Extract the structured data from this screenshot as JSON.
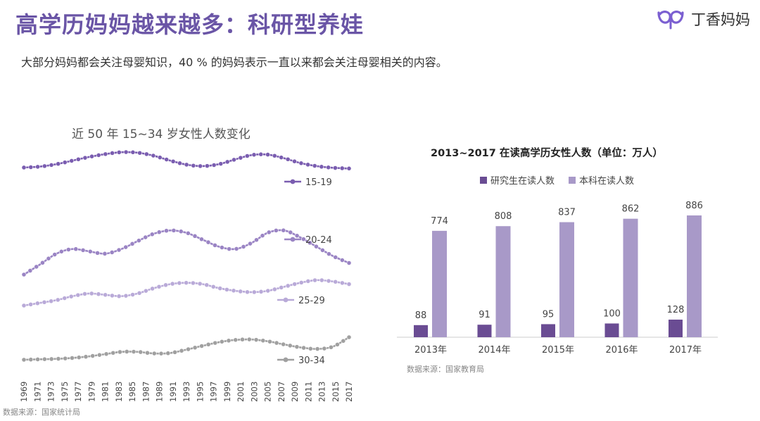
{
  "header": {
    "title": "高学历妈妈越来越多：科研型养娃",
    "subtitle": "大部分妈妈都会关注母婴知识，40 % 的妈妈表示一直以来都会关注母婴相关的内容。",
    "brand_name": "丁香妈妈",
    "brand_logo_icon": "brand-logo-icon"
  },
  "colors": {
    "title": "#6a55a6",
    "grad": "#6a4c93",
    "undergrad": "#a899c8",
    "s1519": "#7a5db0",
    "s2024": "#9a84c4",
    "s2529": "#b9aad8",
    "s3034": "#a0a0a0"
  },
  "left_chart_title": "近 50 年 15~34 岁女性人数变化",
  "left_source": "数据来源：国家统计局",
  "right_chart_title": "2013~2017 在读高学历女性人数（单位：万人）",
  "right_source": "数据来源：国家教育局",
  "legend": {
    "grad": "研究生在读人数",
    "undergrad": "本科在读人数"
  },
  "chart_data": [
    {
      "type": "line",
      "title": "近 50 年 15~34 岁女性人数变化",
      "xlabel": "",
      "ylabel": "",
      "note": "Index of relative population (no y-axis shown); each series drawn in its own band",
      "x_tick_labels": [
        "1969",
        "1971",
        "1973",
        "1975",
        "1977",
        "1979",
        "1981",
        "1983",
        "1985",
        "1987",
        "1989",
        "1991",
        "1993",
        "1995",
        "1997",
        "1999",
        "2001",
        "2003",
        "2005",
        "2007",
        "2009",
        "2011",
        "2013",
        "2015",
        "2017"
      ],
      "series": [
        {
          "name": "15-19",
          "key": "s1519",
          "values": [
            6,
            10,
            20,
            35,
            50,
            62,
            70,
            68,
            55,
            35,
            18,
            12,
            20,
            40,
            58,
            60,
            45,
            25,
            12,
            5,
            2
          ]
        },
        {
          "name": "20-24",
          "key": "s2024",
          "values": [
            0,
            22,
            45,
            55,
            50,
            45,
            55,
            72,
            88,
            95,
            90,
            75,
            60,
            55,
            68,
            90,
            95,
            80,
            60,
            40,
            25
          ]
        },
        {
          "name": "25-29",
          "key": "s2529",
          "values": [
            0,
            10,
            20,
            35,
            45,
            40,
            35,
            45,
            65,
            80,
            85,
            80,
            65,
            55,
            50,
            55,
            70,
            85,
            95,
            90,
            80
          ]
        },
        {
          "name": "30-34",
          "key": "s3034",
          "values": [
            0,
            2,
            4,
            8,
            15,
            25,
            35,
            35,
            28,
            30,
            45,
            62,
            78,
            88,
            90,
            82,
            68,
            55,
            48,
            58,
            100
          ]
        }
      ]
    },
    {
      "type": "bar",
      "title": "2013~2017 在读高学历女性人数（单位：万人）",
      "categories": [
        "2013年",
        "2014年",
        "2015年",
        "2016年",
        "2017年"
      ],
      "series": [
        {
          "name": "研究生在读人数",
          "key": "grad",
          "values": [
            88,
            91,
            95,
            100,
            128
          ]
        },
        {
          "name": "本科在读人数",
          "key": "undergrad",
          "values": [
            774,
            808,
            837,
            862,
            886
          ]
        }
      ],
      "ylim": [
        0,
        1000
      ]
    }
  ]
}
